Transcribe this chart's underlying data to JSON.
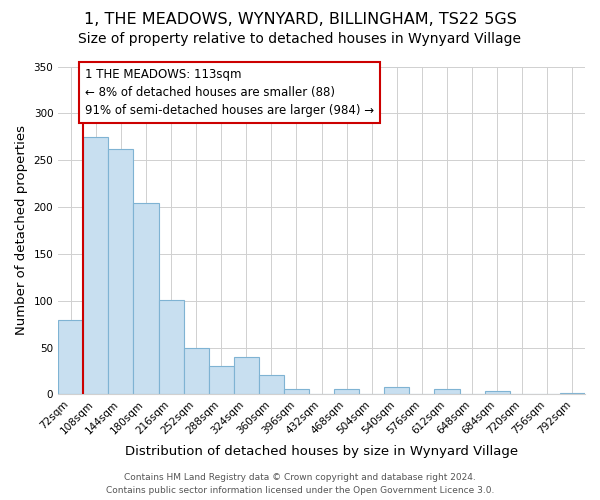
{
  "title": "1, THE MEADOWS, WYNYARD, BILLINGHAM, TS22 5GS",
  "subtitle": "Size of property relative to detached houses in Wynyard Village",
  "xlabel": "Distribution of detached houses by size in Wynyard Village",
  "ylabel": "Number of detached properties",
  "bin_labels": [
    "72sqm",
    "108sqm",
    "144sqm",
    "180sqm",
    "216sqm",
    "252sqm",
    "288sqm",
    "324sqm",
    "360sqm",
    "396sqm",
    "432sqm",
    "468sqm",
    "504sqm",
    "540sqm",
    "576sqm",
    "612sqm",
    "648sqm",
    "684sqm",
    "720sqm",
    "756sqm",
    "792sqm"
  ],
  "bar_values": [
    79,
    275,
    262,
    204,
    101,
    50,
    30,
    40,
    21,
    6,
    0,
    6,
    0,
    8,
    0,
    6,
    0,
    4,
    0,
    0,
    2
  ],
  "bar_color": "#c8dff0",
  "bar_edge_color": "#7fb3d3",
  "vline_x": 0.5,
  "vline_color": "#cc0000",
  "annotation_text": "1 THE MEADOWS: 113sqm\n← 8% of detached houses are smaller (88)\n91% of semi-detached houses are larger (984) →",
  "annotation_box_color": "#ffffff",
  "annotation_box_edge": "#cc0000",
  "ylim": [
    0,
    350
  ],
  "yticks": [
    0,
    50,
    100,
    150,
    200,
    250,
    300,
    350
  ],
  "footer": "Contains HM Land Registry data © Crown copyright and database right 2024.\nContains public sector information licensed under the Open Government Licence 3.0.",
  "bg_color": "#ffffff",
  "grid_color": "#d0d0d0",
  "title_fontsize": 11.5,
  "subtitle_fontsize": 10,
  "axis_label_fontsize": 9.5,
  "tick_fontsize": 7.5,
  "footer_fontsize": 6.5,
  "ann_fontsize": 8.5
}
